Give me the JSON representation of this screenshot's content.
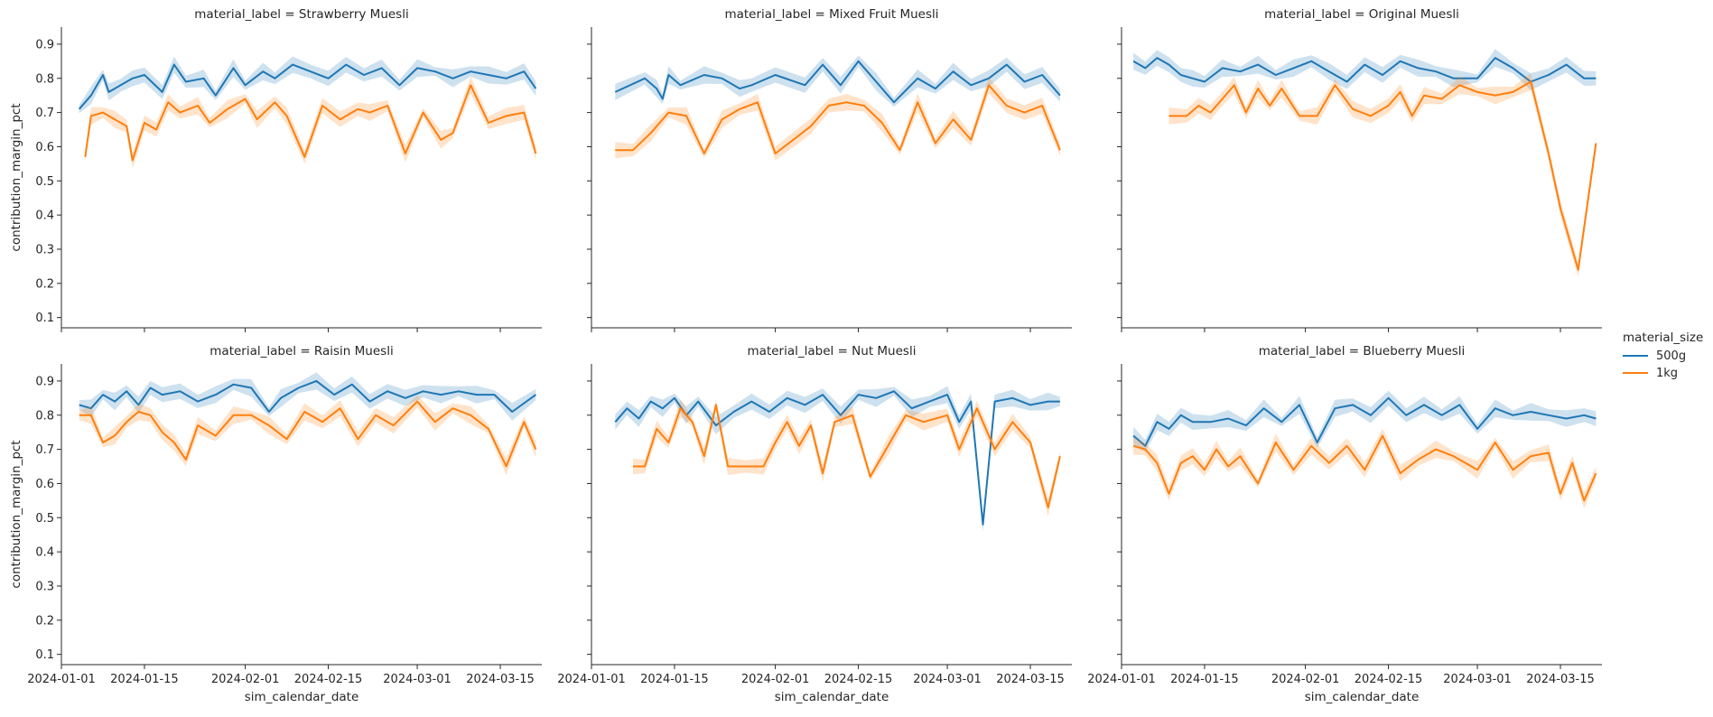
{
  "figure": {
    "legend": {
      "title": "material_size",
      "items": [
        {
          "label": "500g",
          "color": "#1f77b4"
        },
        {
          "label": "1kg",
          "color": "#ff7f0e"
        }
      ],
      "placement": "right"
    },
    "xlabel": "sim_calendar_date",
    "ylabel": "contribution_margin_pct",
    "x_ticks": [
      "2024-01-01",
      "2024-01-15",
      "2024-02-01",
      "2024-02-15",
      "2024-03-01",
      "2024-03-15"
    ],
    "y_ticks": [
      "0.1",
      "0.2",
      "0.3",
      "0.4",
      "0.5",
      "0.6",
      "0.7",
      "0.8",
      "0.9"
    ],
    "grid": false
  },
  "chart_data": [
    {
      "type": "line",
      "title": "material_label = Strawberry Muesli",
      "xlabel": "",
      "ylabel": "contribution_margin_pct",
      "ylim": [
        0.07,
        0.95
      ],
      "x_range": [
        "2024-01-01",
        "2024-03-22"
      ],
      "series": [
        {
          "name": "500g",
          "x": [
            "2024-01-04",
            "2024-01-06",
            "2024-01-08",
            "2024-01-09",
            "2024-01-11",
            "2024-01-13",
            "2024-01-15",
            "2024-01-18",
            "2024-01-20",
            "2024-01-22",
            "2024-01-25",
            "2024-01-27",
            "2024-01-30",
            "2024-02-01",
            "2024-02-04",
            "2024-02-06",
            "2024-02-09",
            "2024-02-12",
            "2024-02-15",
            "2024-02-18",
            "2024-02-21",
            "2024-02-24",
            "2024-02-27",
            "2024-03-01",
            "2024-03-04",
            "2024-03-07",
            "2024-03-10",
            "2024-03-13",
            "2024-03-16",
            "2024-03-19",
            "2024-03-21"
          ],
          "y": [
            0.71,
            0.75,
            0.81,
            0.76,
            0.78,
            0.8,
            0.81,
            0.76,
            0.84,
            0.79,
            0.8,
            0.75,
            0.83,
            0.78,
            0.82,
            0.8,
            0.84,
            0.82,
            0.8,
            0.84,
            0.81,
            0.83,
            0.78,
            0.83,
            0.82,
            0.8,
            0.82,
            0.81,
            0.8,
            0.82,
            0.77
          ]
        },
        {
          "name": "1kg",
          "x": [
            "2024-01-05",
            "2024-01-06",
            "2024-01-08",
            "2024-01-10",
            "2024-01-12",
            "2024-01-13",
            "2024-01-15",
            "2024-01-17",
            "2024-01-19",
            "2024-01-21",
            "2024-01-24",
            "2024-01-26",
            "2024-01-29",
            "2024-02-01",
            "2024-02-03",
            "2024-02-06",
            "2024-02-08",
            "2024-02-11",
            "2024-02-14",
            "2024-02-17",
            "2024-02-20",
            "2024-02-22",
            "2024-02-25",
            "2024-02-28",
            "2024-03-02",
            "2024-03-05",
            "2024-03-07",
            "2024-03-10",
            "2024-03-13",
            "2024-03-16",
            "2024-03-19",
            "2024-03-21"
          ],
          "y": [
            0.57,
            0.69,
            0.7,
            0.68,
            0.66,
            0.56,
            0.67,
            0.65,
            0.73,
            0.7,
            0.72,
            0.67,
            0.71,
            0.74,
            0.68,
            0.73,
            0.69,
            0.57,
            0.72,
            0.68,
            0.71,
            0.7,
            0.72,
            0.58,
            0.7,
            0.62,
            0.64,
            0.78,
            0.67,
            0.69,
            0.7,
            0.58
          ]
        }
      ]
    },
    {
      "type": "line",
      "title": "material_label = Mixed Fruit Muesli",
      "xlabel": "",
      "ylabel": "",
      "ylim": [
        0.07,
        0.95
      ],
      "x_range": [
        "2024-01-01",
        "2024-03-22"
      ],
      "series": [
        {
          "name": "500g",
          "x": [
            "2024-01-05",
            "2024-01-10",
            "2024-01-12",
            "2024-01-13",
            "2024-01-14",
            "2024-01-16",
            "2024-01-20",
            "2024-01-23",
            "2024-01-26",
            "2024-01-28",
            "2024-02-01",
            "2024-02-06",
            "2024-02-09",
            "2024-02-12",
            "2024-02-15",
            "2024-02-18",
            "2024-02-21",
            "2024-02-25",
            "2024-02-28",
            "2024-03-02",
            "2024-03-05",
            "2024-03-08",
            "2024-03-11",
            "2024-03-14",
            "2024-03-17",
            "2024-03-20"
          ],
          "y": [
            0.76,
            0.8,
            0.77,
            0.74,
            0.81,
            0.78,
            0.81,
            0.8,
            0.77,
            0.78,
            0.81,
            0.78,
            0.84,
            0.78,
            0.85,
            0.79,
            0.73,
            0.8,
            0.77,
            0.82,
            0.78,
            0.8,
            0.84,
            0.79,
            0.81,
            0.75
          ]
        },
        {
          "name": "1kg",
          "x": [
            "2024-01-05",
            "2024-01-08",
            "2024-01-11",
            "2024-01-14",
            "2024-01-17",
            "2024-01-20",
            "2024-01-23",
            "2024-01-26",
            "2024-01-29",
            "2024-02-01",
            "2024-02-04",
            "2024-02-07",
            "2024-02-10",
            "2024-02-13",
            "2024-02-16",
            "2024-02-19",
            "2024-02-22",
            "2024-02-25",
            "2024-02-28",
            "2024-03-02",
            "2024-03-05",
            "2024-03-08",
            "2024-03-11",
            "2024-03-14",
            "2024-03-17",
            "2024-03-20"
          ],
          "y": [
            0.59,
            0.59,
            0.64,
            0.7,
            0.69,
            0.58,
            0.68,
            0.71,
            0.73,
            0.58,
            0.62,
            0.66,
            0.72,
            0.73,
            0.72,
            0.67,
            0.59,
            0.73,
            0.61,
            0.68,
            0.62,
            0.78,
            0.72,
            0.7,
            0.72,
            0.59
          ]
        }
      ]
    },
    {
      "type": "line",
      "title": "material_label = Original Muesli",
      "xlabel": "",
      "ylabel": "",
      "ylim": [
        0.07,
        0.95
      ],
      "x_range": [
        "2024-01-01",
        "2024-03-22"
      ],
      "series": [
        {
          "name": "500g",
          "x": [
            "2024-01-03",
            "2024-01-05",
            "2024-01-07",
            "2024-01-09",
            "2024-01-11",
            "2024-01-13",
            "2024-01-15",
            "2024-01-18",
            "2024-01-21",
            "2024-01-24",
            "2024-01-27",
            "2024-01-30",
            "2024-02-02",
            "2024-02-05",
            "2024-02-08",
            "2024-02-11",
            "2024-02-14",
            "2024-02-17",
            "2024-02-20",
            "2024-02-23",
            "2024-02-26",
            "2024-03-01",
            "2024-03-04",
            "2024-03-07",
            "2024-03-10",
            "2024-03-13",
            "2024-03-16",
            "2024-03-19",
            "2024-03-21"
          ],
          "y": [
            0.85,
            0.83,
            0.86,
            0.84,
            0.81,
            0.8,
            0.79,
            0.83,
            0.82,
            0.84,
            0.81,
            0.83,
            0.85,
            0.82,
            0.79,
            0.84,
            0.81,
            0.85,
            0.83,
            0.82,
            0.8,
            0.8,
            0.86,
            0.83,
            0.79,
            0.81,
            0.84,
            0.8,
            0.8
          ]
        },
        {
          "name": "1kg",
          "x": [
            "2024-01-09",
            "2024-01-12",
            "2024-01-14",
            "2024-01-16",
            "2024-01-18",
            "2024-01-20",
            "2024-01-22",
            "2024-01-24",
            "2024-01-26",
            "2024-01-28",
            "2024-01-31",
            "2024-02-03",
            "2024-02-06",
            "2024-02-09",
            "2024-02-12",
            "2024-02-15",
            "2024-02-17",
            "2024-02-19",
            "2024-02-21",
            "2024-02-24",
            "2024-02-27",
            "2024-03-01",
            "2024-03-04",
            "2024-03-07",
            "2024-03-10",
            "2024-03-13",
            "2024-03-15",
            "2024-03-18",
            "2024-03-21"
          ],
          "y": [
            0.69,
            0.69,
            0.72,
            0.7,
            0.74,
            0.78,
            0.7,
            0.77,
            0.72,
            0.77,
            0.69,
            0.69,
            0.78,
            0.71,
            0.69,
            0.72,
            0.76,
            0.69,
            0.75,
            0.74,
            0.78,
            0.76,
            0.75,
            0.76,
            0.79,
            0.58,
            0.42,
            0.24,
            0.61
          ]
        }
      ]
    },
    {
      "type": "line",
      "title": "material_label = Raisin Muesli",
      "xlabel": "sim_calendar_date",
      "ylabel": "contribution_margin_pct",
      "ylim": [
        0.07,
        0.95
      ],
      "x_range": [
        "2024-01-01",
        "2024-03-22"
      ],
      "series": [
        {
          "name": "500g",
          "x": [
            "2024-01-04",
            "2024-01-06",
            "2024-01-08",
            "2024-01-10",
            "2024-01-12",
            "2024-01-14",
            "2024-01-16",
            "2024-01-18",
            "2024-01-21",
            "2024-01-24",
            "2024-01-27",
            "2024-01-30",
            "2024-02-02",
            "2024-02-05",
            "2024-02-07",
            "2024-02-10",
            "2024-02-13",
            "2024-02-16",
            "2024-02-19",
            "2024-02-22",
            "2024-02-25",
            "2024-02-28",
            "2024-03-02",
            "2024-03-05",
            "2024-03-08",
            "2024-03-11",
            "2024-03-14",
            "2024-03-17",
            "2024-03-21"
          ],
          "y": [
            0.83,
            0.82,
            0.86,
            0.84,
            0.87,
            0.83,
            0.88,
            0.86,
            0.87,
            0.84,
            0.86,
            0.89,
            0.88,
            0.81,
            0.85,
            0.88,
            0.9,
            0.86,
            0.89,
            0.84,
            0.87,
            0.85,
            0.87,
            0.86,
            0.87,
            0.86,
            0.86,
            0.81,
            0.86
          ]
        },
        {
          "name": "1kg",
          "x": [
            "2024-01-04",
            "2024-01-06",
            "2024-01-08",
            "2024-01-10",
            "2024-01-12",
            "2024-01-14",
            "2024-01-16",
            "2024-01-18",
            "2024-01-20",
            "2024-01-22",
            "2024-01-24",
            "2024-01-27",
            "2024-01-30",
            "2024-02-02",
            "2024-02-05",
            "2024-02-08",
            "2024-02-11",
            "2024-02-14",
            "2024-02-17",
            "2024-02-20",
            "2024-02-23",
            "2024-02-26",
            "2024-03-01",
            "2024-03-04",
            "2024-03-07",
            "2024-03-10",
            "2024-03-13",
            "2024-03-16",
            "2024-03-19",
            "2024-03-21"
          ],
          "y": [
            0.8,
            0.8,
            0.72,
            0.74,
            0.78,
            0.81,
            0.8,
            0.75,
            0.72,
            0.67,
            0.77,
            0.74,
            0.8,
            0.8,
            0.77,
            0.73,
            0.81,
            0.78,
            0.82,
            0.73,
            0.8,
            0.77,
            0.84,
            0.78,
            0.82,
            0.8,
            0.76,
            0.65,
            0.78,
            0.7
          ]
        }
      ]
    },
    {
      "type": "line",
      "title": "material_label = Nut Muesli",
      "xlabel": "sim_calendar_date",
      "ylabel": "",
      "ylim": [
        0.07,
        0.95
      ],
      "x_range": [
        "2024-01-01",
        "2024-03-22"
      ],
      "series": [
        {
          "name": "500g",
          "x": [
            "2024-01-05",
            "2024-01-07",
            "2024-01-09",
            "2024-01-11",
            "2024-01-13",
            "2024-01-15",
            "2024-01-17",
            "2024-01-19",
            "2024-01-22",
            "2024-01-25",
            "2024-01-28",
            "2024-01-31",
            "2024-02-03",
            "2024-02-06",
            "2024-02-09",
            "2024-02-12",
            "2024-02-15",
            "2024-02-18",
            "2024-02-21",
            "2024-02-24",
            "2024-02-27",
            "2024-03-01",
            "2024-03-03",
            "2024-03-05",
            "2024-03-07",
            "2024-03-09",
            "2024-03-12",
            "2024-03-15",
            "2024-03-18",
            "2024-03-20"
          ],
          "y": [
            0.78,
            0.82,
            0.79,
            0.84,
            0.82,
            0.85,
            0.8,
            0.84,
            0.77,
            0.81,
            0.84,
            0.81,
            0.85,
            0.83,
            0.86,
            0.8,
            0.86,
            0.85,
            0.87,
            0.82,
            0.84,
            0.86,
            0.78,
            0.84,
            0.48,
            0.84,
            0.85,
            0.83,
            0.84,
            0.84
          ]
        },
        {
          "name": "1kg",
          "x": [
            "2024-01-08",
            "2024-01-10",
            "2024-01-12",
            "2024-01-14",
            "2024-01-16",
            "2024-01-18",
            "2024-01-20",
            "2024-01-22",
            "2024-01-24",
            "2024-01-27",
            "2024-01-30",
            "2024-02-01",
            "2024-02-03",
            "2024-02-05",
            "2024-02-07",
            "2024-02-09",
            "2024-02-11",
            "2024-02-14",
            "2024-02-17",
            "2024-02-20",
            "2024-02-23",
            "2024-02-26",
            "2024-03-01",
            "2024-03-03",
            "2024-03-06",
            "2024-03-09",
            "2024-03-12",
            "2024-03-15",
            "2024-03-18",
            "2024-03-20"
          ],
          "y": [
            0.65,
            0.65,
            0.76,
            0.72,
            0.82,
            0.78,
            0.68,
            0.83,
            0.65,
            0.65,
            0.65,
            0.72,
            0.78,
            0.71,
            0.77,
            0.63,
            0.78,
            0.8,
            0.62,
            0.71,
            0.8,
            0.78,
            0.8,
            0.7,
            0.82,
            0.7,
            0.78,
            0.72,
            0.53,
            0.68
          ]
        }
      ]
    },
    {
      "type": "line",
      "title": "material_label = Blueberry Muesli",
      "xlabel": "sim_calendar_date",
      "ylabel": "",
      "ylim": [
        0.07,
        0.95
      ],
      "x_range": [
        "2024-01-01",
        "2024-03-22"
      ],
      "series": [
        {
          "name": "500g",
          "x": [
            "2024-01-03",
            "2024-01-05",
            "2024-01-07",
            "2024-01-09",
            "2024-01-11",
            "2024-01-13",
            "2024-01-16",
            "2024-01-19",
            "2024-01-22",
            "2024-01-25",
            "2024-01-28",
            "2024-01-31",
            "2024-02-03",
            "2024-02-06",
            "2024-02-09",
            "2024-02-12",
            "2024-02-15",
            "2024-02-18",
            "2024-02-21",
            "2024-02-24",
            "2024-02-27",
            "2024-03-01",
            "2024-03-04",
            "2024-03-07",
            "2024-03-10",
            "2024-03-13",
            "2024-03-16",
            "2024-03-19",
            "2024-03-21"
          ],
          "y": [
            0.74,
            0.71,
            0.78,
            0.76,
            0.8,
            0.78,
            0.78,
            0.79,
            0.77,
            0.82,
            0.78,
            0.83,
            0.72,
            0.82,
            0.83,
            0.8,
            0.85,
            0.8,
            0.83,
            0.8,
            0.83,
            0.76,
            0.82,
            0.8,
            0.81,
            0.8,
            0.79,
            0.8,
            0.79
          ]
        },
        {
          "name": "1kg",
          "x": [
            "2024-01-03",
            "2024-01-05",
            "2024-01-07",
            "2024-01-09",
            "2024-01-11",
            "2024-01-13",
            "2024-01-15",
            "2024-01-17",
            "2024-01-19",
            "2024-01-21",
            "2024-01-24",
            "2024-01-27",
            "2024-01-30",
            "2024-02-02",
            "2024-02-05",
            "2024-02-08",
            "2024-02-11",
            "2024-02-14",
            "2024-02-17",
            "2024-02-20",
            "2024-02-23",
            "2024-02-26",
            "2024-03-01",
            "2024-03-04",
            "2024-03-07",
            "2024-03-10",
            "2024-03-13",
            "2024-03-15",
            "2024-03-17",
            "2024-03-19",
            "2024-03-21"
          ],
          "y": [
            0.71,
            0.7,
            0.66,
            0.57,
            0.66,
            0.68,
            0.64,
            0.7,
            0.65,
            0.68,
            0.6,
            0.72,
            0.64,
            0.71,
            0.66,
            0.71,
            0.64,
            0.74,
            0.63,
            0.67,
            0.7,
            0.68,
            0.64,
            0.72,
            0.64,
            0.68,
            0.69,
            0.57,
            0.66,
            0.55,
            0.63
          ]
        }
      ]
    }
  ]
}
